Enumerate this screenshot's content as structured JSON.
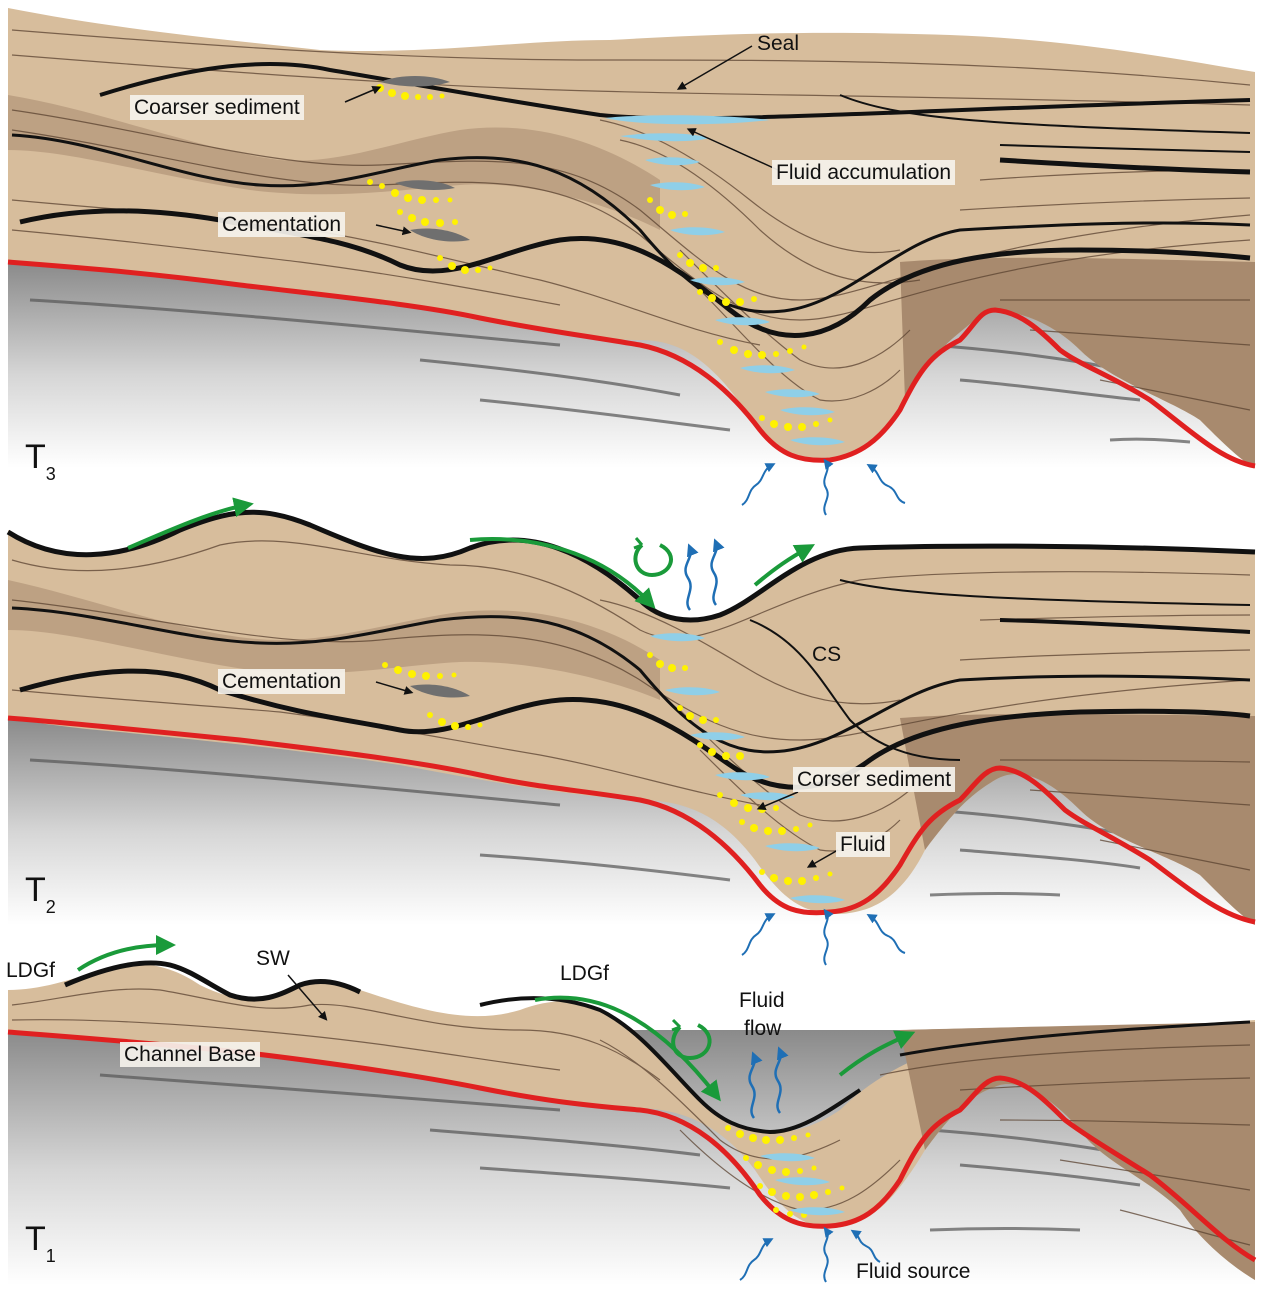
{
  "panels": [
    {
      "time_label": "T",
      "time_sub": "3",
      "labels": {
        "seal": "Seal",
        "coarser_sediment": "Coarser sediment",
        "fluid_accumulation": "Fluid accumulation",
        "cementation": "Cementation"
      }
    },
    {
      "time_label": "T",
      "time_sub": "2",
      "labels": {
        "cementation": "Cementation",
        "cs": "CS",
        "corser_sediment": "Corser sediment",
        "fluid": "Fluid"
      }
    },
    {
      "time_label": "T",
      "time_sub": "1",
      "labels": {
        "ldgf_left": "LDGf",
        "sw": "SW",
        "ldgf_mid": "LDGf",
        "fluid_flow_line1": "Fluid",
        "fluid_flow_line2": "flow",
        "channel_base": "Channel Base",
        "fluid_source": "Fluid source"
      }
    }
  ],
  "colors": {
    "sediment_light": "#d9bf9f",
    "sediment_dark": "#b0937a",
    "layer_line": "#3a2a1c",
    "channel_base": "#e02020",
    "coarse_grains": "#fff200",
    "fluid": "#8fcfe8",
    "flow_arrow": "#1a9a3a",
    "fluid_arrow": "#1f6fb5",
    "basement": "#c8c8c8"
  },
  "icons": {
    "flow_arrow": "green-curved-arrow-icon",
    "vortex": "green-circular-arrow-icon",
    "fluid_flow": "blue-wavy-arrow-icon"
  }
}
